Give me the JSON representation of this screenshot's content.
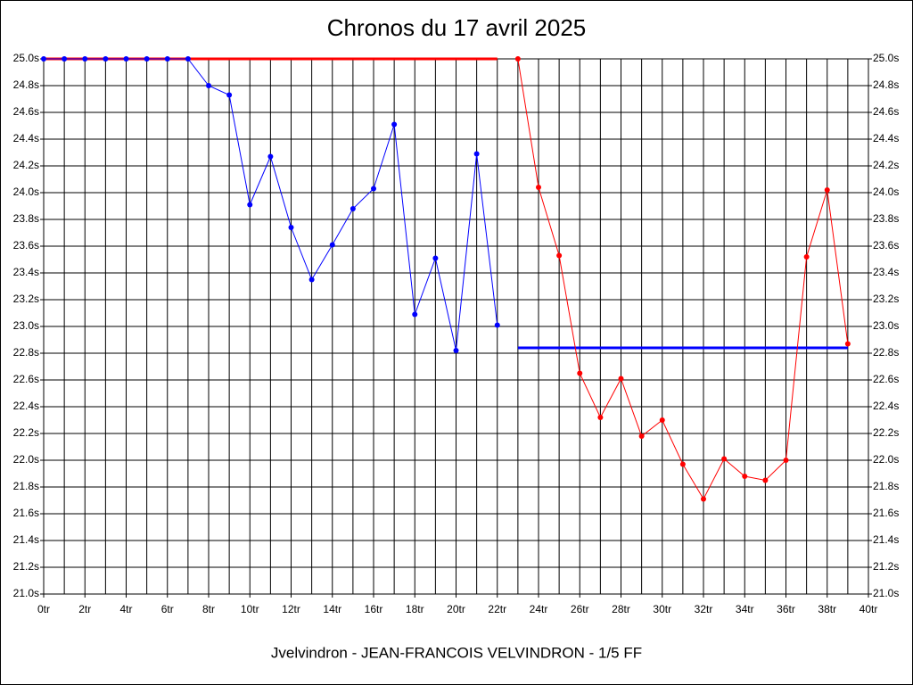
{
  "chart_data": {
    "type": "line",
    "title": "Chronos du 17 avril 2025",
    "subtitle": "Jvelvindron - JEAN-FRANCOIS VELVINDRON - 1/5 FF",
    "xlim": [
      0,
      40
    ],
    "ylim": [
      21.0,
      25.0
    ],
    "grid": true,
    "xticks": [
      {
        "value": 0,
        "label": "0tr"
      },
      {
        "value": 2,
        "label": "2tr"
      },
      {
        "value": 4,
        "label": "4tr"
      },
      {
        "value": 6,
        "label": "6tr"
      },
      {
        "value": 8,
        "label": "8tr"
      },
      {
        "value": 10,
        "label": "10tr"
      },
      {
        "value": 12,
        "label": "12tr"
      },
      {
        "value": 14,
        "label": "14tr"
      },
      {
        "value": 16,
        "label": "16tr"
      },
      {
        "value": 18,
        "label": "18tr"
      },
      {
        "value": 20,
        "label": "20tr"
      },
      {
        "value": 22,
        "label": "22tr"
      },
      {
        "value": 24,
        "label": "24tr"
      },
      {
        "value": 26,
        "label": "26tr"
      },
      {
        "value": 28,
        "label": "28tr"
      },
      {
        "value": 30,
        "label": "30tr"
      },
      {
        "value": 32,
        "label": "32tr"
      },
      {
        "value": 34,
        "label": "34tr"
      },
      {
        "value": 36,
        "label": "36tr"
      },
      {
        "value": 38,
        "label": "38tr"
      },
      {
        "value": 40,
        "label": "40tr"
      }
    ],
    "xminor_ticks": [
      1,
      3,
      5,
      7,
      9,
      11,
      13,
      15,
      17,
      19,
      21,
      23,
      25,
      27,
      29,
      31,
      33,
      35,
      37,
      39
    ],
    "yticks": [
      {
        "value": 21.0,
        "label": "21.0s"
      },
      {
        "value": 21.2,
        "label": "21.2s"
      },
      {
        "value": 21.4,
        "label": "21.4s"
      },
      {
        "value": 21.6,
        "label": "21.6s"
      },
      {
        "value": 21.8,
        "label": "21.8s"
      },
      {
        "value": 22.0,
        "label": "22.0s"
      },
      {
        "value": 22.2,
        "label": "22.2s"
      },
      {
        "value": 22.4,
        "label": "22.4s"
      },
      {
        "value": 22.6,
        "label": "22.6s"
      },
      {
        "value": 22.8,
        "label": "22.8s"
      },
      {
        "value": 23.0,
        "label": "23.0s"
      },
      {
        "value": 23.2,
        "label": "23.2s"
      },
      {
        "value": 23.4,
        "label": "23.4s"
      },
      {
        "value": 23.6,
        "label": "23.6s"
      },
      {
        "value": 23.8,
        "label": "23.8s"
      },
      {
        "value": 24.0,
        "label": "24.0s"
      },
      {
        "value": 24.2,
        "label": "24.2s"
      },
      {
        "value": 24.4,
        "label": "24.4s"
      },
      {
        "value": 24.6,
        "label": "24.6s"
      },
      {
        "value": 24.8,
        "label": "24.8s"
      },
      {
        "value": 25.0,
        "label": "25.0s"
      }
    ],
    "series": [
      {
        "color": "#0000ff",
        "x": [
          0,
          1,
          2,
          3,
          4,
          5,
          6,
          7,
          8,
          9,
          10,
          11,
          12,
          13,
          14,
          15,
          16,
          17,
          18,
          19,
          20,
          21,
          22
        ],
        "values": [
          25.0,
          25.0,
          25.0,
          25.0,
          25.0,
          25.0,
          25.0,
          25.0,
          24.8,
          24.73,
          23.91,
          24.27,
          23.74,
          23.35,
          23.61,
          23.88,
          24.03,
          24.51,
          23.09,
          23.51,
          22.82,
          24.29,
          23.01
        ]
      },
      {
        "color": "#ff0000",
        "x": [
          23,
          24,
          25,
          26,
          27,
          28,
          29,
          30,
          31,
          32,
          33,
          34,
          35,
          36,
          37,
          38,
          39
        ],
        "values": [
          25.0,
          24.04,
          23.53,
          22.65,
          22.32,
          22.61,
          22.18,
          22.3,
          21.97,
          21.71,
          22.01,
          21.88,
          21.85,
          22.0,
          23.52,
          24.02,
          22.87
        ]
      }
    ],
    "hlines": [
      {
        "color": "#ff0000",
        "y": 25.0,
        "x": [
          0,
          22
        ]
      },
      {
        "color": "#0000ff",
        "y": 22.84,
        "x": [
          23,
          39
        ]
      }
    ]
  }
}
